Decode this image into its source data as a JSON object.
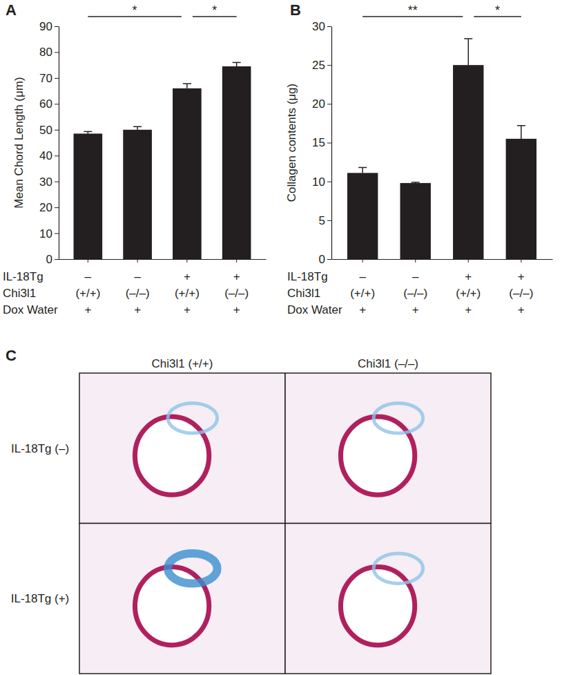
{
  "chart_data": [
    {
      "type": "bar",
      "panel_label": "A",
      "y_label": "Mean Chord Length (μm)",
      "categories": [
        null,
        null,
        null,
        null
      ],
      "values": [
        48.5,
        50,
        66,
        74.5
      ],
      "errors": [
        0.8,
        1.2,
        1.8,
        1.5
      ],
      "color": "#231f20",
      "ylim": [
        0,
        90
      ],
      "yticks": [
        0,
        10,
        20,
        30,
        40,
        50,
        60,
        70,
        80,
        90
      ],
      "condition_table": [
        {
          "name": "IL-18Tg",
          "values": [
            "–",
            "–",
            "+",
            "+"
          ]
        },
        {
          "name": "Chi3l1",
          "values": [
            "(+/+)",
            "(–/–)",
            "(+/+)",
            "(–/–)"
          ]
        },
        {
          "name": "Dox Water",
          "values": [
            "+",
            "+",
            "+",
            "+"
          ]
        }
      ],
      "comparisons": [
        {
          "from": 0,
          "to": 2,
          "label": "*"
        },
        {
          "from": 2,
          "to": 3,
          "label": "*"
        }
      ]
    },
    {
      "type": "bar",
      "panel_label": "B",
      "y_label": "Collagen contents (μg)",
      "categories": [
        null,
        null,
        null,
        null
      ],
      "values": [
        11.1,
        9.8,
        25,
        15.5
      ],
      "errors": [
        0.7,
        0.1,
        3.4,
        1.7
      ],
      "color": "#231f20",
      "ylim": [
        0,
        30
      ],
      "yticks": [
        0,
        5,
        10,
        15,
        20,
        25,
        30
      ],
      "condition_table": [
        {
          "name": "IL-18Tg",
          "values": [
            "–",
            "–",
            "+",
            "+"
          ]
        },
        {
          "name": "Chi3l1",
          "values": [
            "(+/+)",
            "(–/–)",
            "(+/+)",
            "(–/–)"
          ]
        },
        {
          "name": "Dox Water",
          "values": [
            "+",
            "+",
            "+",
            "+"
          ]
        }
      ],
      "comparisons": [
        {
          "from": 0,
          "to": 2,
          "label": "**"
        },
        {
          "from": 2,
          "to": 3,
          "label": "*"
        }
      ]
    }
  ],
  "panel_c": {
    "panel_label": "C",
    "columns": [
      "Chi3l1 (+/+)",
      "Chi3l1 (–/–)"
    ],
    "rows": [
      "IL-18Tg (–)",
      "IL-18Tg (+)"
    ]
  }
}
